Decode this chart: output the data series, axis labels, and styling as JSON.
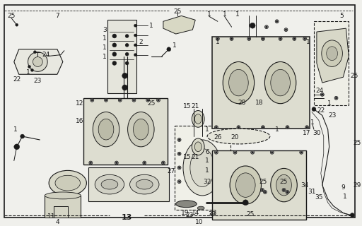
{
  "figsize": [
    5.12,
    3.2
  ],
  "dpi": 100,
  "bg": "#f0f0ec",
  "lc": "#1a1a1a",
  "page": "13"
}
